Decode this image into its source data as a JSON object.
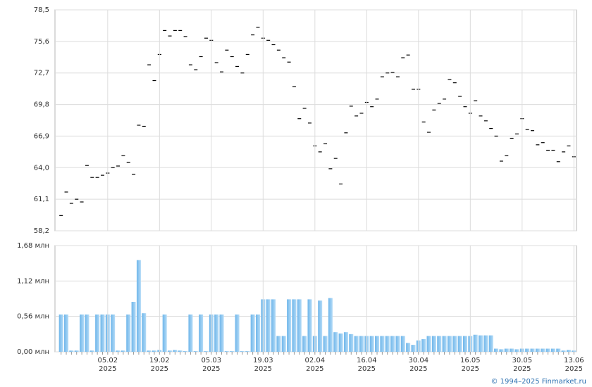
{
  "chart_data": [
    {
      "type": "scatter",
      "color": "#000000",
      "values": [
        59.6,
        61.76,
        60.72,
        61.1,
        60.85,
        64.2,
        63.1,
        63.1,
        63.3,
        63.5,
        64.0,
        64.15,
        65.1,
        64.5,
        63.4,
        67.9,
        67.8,
        73.45,
        72.0,
        74.4,
        76.6,
        76.1,
        76.6,
        76.6,
        76.05,
        73.45,
        73.0,
        74.2,
        75.9,
        75.7,
        73.65,
        72.8,
        74.8,
        74.2,
        73.3,
        72.7,
        74.4,
        76.2,
        76.9,
        75.9,
        75.7,
        75.3,
        74.8,
        74.1,
        73.7,
        71.45,
        68.5,
        69.45,
        68.1,
        66.0,
        65.45,
        66.2,
        63.9,
        64.85,
        62.5,
        67.2,
        69.65,
        68.75,
        69.0,
        70.0,
        69.6,
        70.3,
        72.35,
        72.7,
        72.75,
        72.35,
        74.1,
        74.35,
        71.2,
        71.2,
        68.2,
        67.25,
        69.3,
        69.9,
        70.3,
        72.1,
        71.8,
        70.55,
        69.6,
        69.0,
        70.15,
        68.75,
        68.3,
        67.6,
        66.9,
        64.6,
        65.1,
        66.7,
        67.1,
        68.5,
        67.5,
        67.4,
        66.1,
        66.3,
        65.6,
        65.6,
        64.55,
        65.45,
        66.0,
        65.0
      ],
      "ylim": [
        58.2,
        78.5
      ],
      "yticks": [
        {
          "value": 58.2,
          "label": "58,2"
        },
        {
          "value": 61.1,
          "label": "61,1"
        },
        {
          "value": 64.0,
          "label": "64,0"
        },
        {
          "value": 66.9,
          "label": "66,9"
        },
        {
          "value": 69.8,
          "label": "69,8"
        },
        {
          "value": 72.7,
          "label": "72,7"
        },
        {
          "value": 75.6,
          "label": "75,6"
        },
        {
          "value": 78.5,
          "label": "78,5"
        }
      ],
      "grid": true
    },
    {
      "type": "bar",
      "color": "#8cc6ef",
      "categories": [
        null,
        null,
        null,
        null,
        null,
        null,
        null,
        null,
        null,
        "05.02\n2025",
        null,
        null,
        null,
        null,
        null,
        null,
        null,
        null,
        null,
        "19.02\n2025",
        null,
        null,
        null,
        null,
        null,
        null,
        null,
        null,
        null,
        "05.03\n2025",
        null,
        null,
        null,
        null,
        null,
        null,
        null,
        null,
        null,
        "19.03\n2025",
        null,
        null,
        null,
        null,
        null,
        null,
        null,
        null,
        null,
        "02.04\n2025",
        null,
        null,
        null,
        null,
        null,
        null,
        null,
        null,
        null,
        "16.04\n2025",
        null,
        null,
        null,
        null,
        null,
        null,
        null,
        null,
        null,
        "30.04\n2025",
        null,
        null,
        null,
        null,
        null,
        null,
        null,
        null,
        null,
        "16.05\n2025",
        null,
        null,
        null,
        null,
        null,
        null,
        null,
        null,
        null,
        "30.05\n2025",
        null,
        null,
        null,
        null,
        null,
        null,
        null,
        null,
        null,
        "13.06\n2025"
      ],
      "values": [
        0.59,
        0.59,
        0.02,
        0.02,
        0.59,
        0.59,
        0.02,
        0.59,
        0.59,
        0.59,
        0.59,
        0.02,
        0.02,
        0.59,
        0.79,
        1.45,
        0.61,
        0.02,
        0.02,
        0.03,
        0.59,
        0.02,
        0.03,
        0.02,
        0.01,
        0.59,
        0.01,
        0.59,
        0.01,
        0.59,
        0.59,
        0.59,
        0.01,
        0.01,
        0.59,
        0.01,
        0.01,
        0.59,
        0.59,
        0.83,
        0.83,
        0.83,
        0.25,
        0.25,
        0.83,
        0.83,
        0.83,
        0.25,
        0.83,
        0.25,
        0.81,
        0.25,
        0.85,
        0.31,
        0.29,
        0.31,
        0.28,
        0.25,
        0.25,
        0.25,
        0.25,
        0.25,
        0.25,
        0.25,
        0.25,
        0.25,
        0.25,
        0.14,
        0.11,
        0.18,
        0.2,
        0.25,
        0.25,
        0.25,
        0.25,
        0.25,
        0.25,
        0.25,
        0.25,
        0.25,
        0.27,
        0.26,
        0.26,
        0.26,
        0.05,
        0.04,
        0.05,
        0.05,
        0.04,
        0.05,
        0.05,
        0.05,
        0.05,
        0.05,
        0.05,
        0.05,
        0.05,
        0.02,
        0.03,
        0.02
      ],
      "ylim": [
        0,
        1.68
      ],
      "yticks": [
        {
          "value": 0,
          "label": "0,00 млн"
        },
        {
          "value": 0.56,
          "label": "0,56 млн"
        },
        {
          "value": 1.12,
          "label": "1,12 млн"
        },
        {
          "value": 1.68,
          "label": "1,68 млн"
        }
      ],
      "grid": true
    }
  ],
  "footer": "© 1994–2025 Finmarket.ru"
}
